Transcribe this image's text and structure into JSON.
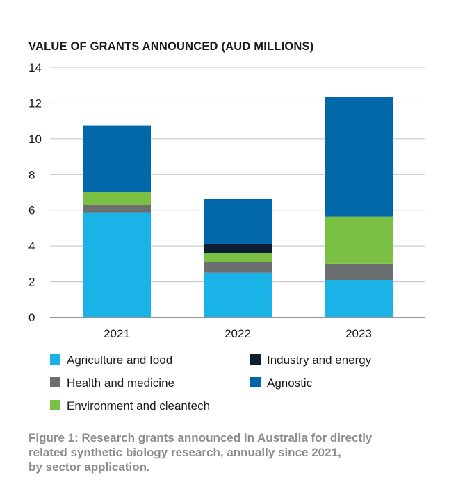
{
  "chart_data": {
    "type": "bar",
    "stacked": true,
    "title": "VALUE OF GRANTS ANNOUNCED (AUD MILLIONS)",
    "xlabel": "",
    "ylabel": "",
    "ylim": [
      0,
      14
    ],
    "yticks": [
      0,
      2,
      4,
      6,
      8,
      10,
      12,
      14
    ],
    "categories": [
      "2021",
      "2022",
      "2023"
    ],
    "series": [
      {
        "name": "Agriculture and food",
        "color": "#1ab3e8",
        "values": [
          5.85,
          2.5,
          2.1
        ]
      },
      {
        "name": "Health and medicine",
        "color": "#6d6e70",
        "values": [
          0.45,
          0.6,
          0.9
        ]
      },
      {
        "name": "Environment and cleantech",
        "color": "#7ac143",
        "values": [
          0.7,
          0.5,
          2.65
        ]
      },
      {
        "name": "Industry and energy",
        "color": "#0b1f33",
        "values": [
          0.0,
          0.5,
          0.0
        ]
      },
      {
        "name": "Agnostic",
        "color": "#0068a8",
        "values": [
          3.75,
          2.55,
          6.7
        ]
      }
    ],
    "grid": true
  },
  "legend": {
    "items": [
      {
        "name": "Agriculture and food",
        "color": "#1ab3e8"
      },
      {
        "name": "Industry and energy",
        "color": "#0b1f33"
      },
      {
        "name": "Health and medicine",
        "color": "#6d6e70"
      },
      {
        "name": "Agnostic",
        "color": "#0068a8"
      },
      {
        "name": "Environment and cleantech",
        "color": "#7ac143"
      }
    ]
  },
  "caption": {
    "line1": "Figure 1: Research grants announced in Australia for directly",
    "line2": "related synthetic biology research, annually since 2021,",
    "line3": "by sector application."
  }
}
